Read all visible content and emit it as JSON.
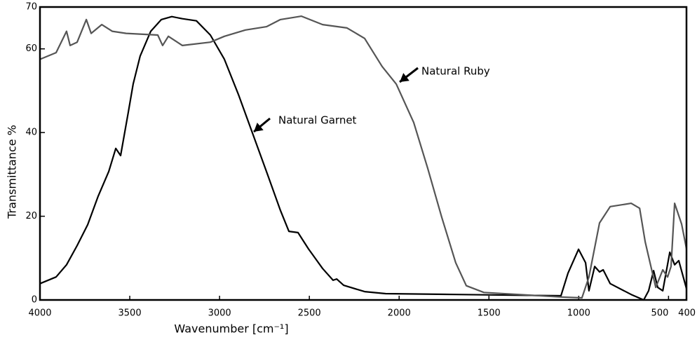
{
  "chart_data": {
    "type": "line",
    "xlabel": "Wavenumber [cm⁻¹]",
    "ylabel": "Transmittance %",
    "xlim": [
      4000,
      400
    ],
    "ylim": [
      0,
      70
    ],
    "xticks": [
      4000,
      3500,
      3000,
      2500,
      2000,
      1500,
      1000,
      500,
      400
    ],
    "yticks": [
      0,
      20,
      40,
      60,
      70
    ],
    "series": [
      {
        "name": "Natural Garnet",
        "color": "#000000",
        "x": [
          4000,
          3910,
          3852,
          3793,
          3734,
          3676,
          3617,
          3578,
          3551,
          3508,
          3481,
          3442,
          3383,
          3324,
          3266,
          3207,
          3129,
          3051,
          2973,
          2895,
          2817,
          2739,
          2661,
          2614,
          2563,
          2505,
          2426,
          2368,
          2348,
          2309,
          2192,
          2075,
          1685,
          1099,
          1060,
          1001,
          962,
          943,
          911,
          884,
          864,
          825,
          708,
          638,
          611,
          583,
          560,
          532,
          493,
          466,
          443,
          400
        ],
        "values": [
          3.9,
          5.5,
          8.4,
          13,
          18,
          24.8,
          30.7,
          36.2,
          34.5,
          44.9,
          51.6,
          58.3,
          64.2,
          67,
          67.7,
          67.2,
          66.7,
          63.3,
          57.5,
          49.1,
          39.9,
          30.7,
          21.4,
          16.4,
          16.1,
          12.2,
          7.5,
          4.7,
          5,
          3.5,
          2,
          1.5,
          1.3,
          1,
          6.4,
          12.1,
          8.9,
          2.2,
          8,
          6.7,
          7.2,
          3.9,
          1.3,
          0,
          2.2,
          7,
          3,
          2.2,
          11.4,
          8.4,
          9.4,
          2.7
        ]
      },
      {
        "name": "Natural Ruby",
        "color": "#555555",
        "x": [
          4000,
          3910,
          3852,
          3832,
          3793,
          3742,
          3715,
          3656,
          3598,
          3520,
          3344,
          3317,
          3285,
          3207,
          3051,
          2973,
          2856,
          2739,
          2661,
          2544,
          2426,
          2290,
          2192,
          2095,
          2016,
          1919,
          1841,
          1763,
          1685,
          1626,
          1528,
          1099,
          982,
          943,
          884,
          825,
          708,
          661,
          630,
          571,
          532,
          505,
          486,
          466,
          427,
          400
        ],
        "values": [
          57.5,
          59.1,
          64.2,
          60.8,
          61.6,
          67,
          63.7,
          65.8,
          64.2,
          63.7,
          63.3,
          60.8,
          63,
          60.8,
          61.6,
          63,
          64.5,
          65.3,
          67,
          67.8,
          65.8,
          65,
          62.5,
          55.8,
          51.6,
          42.4,
          31.5,
          19.8,
          8.9,
          3.4,
          1.8,
          0.7,
          0.5,
          5.5,
          18.4,
          22.3,
          23.1,
          21.9,
          13.9,
          3,
          7.2,
          5.5,
          8,
          23.1,
          18.1,
          12.2
        ]
      }
    ]
  }
}
